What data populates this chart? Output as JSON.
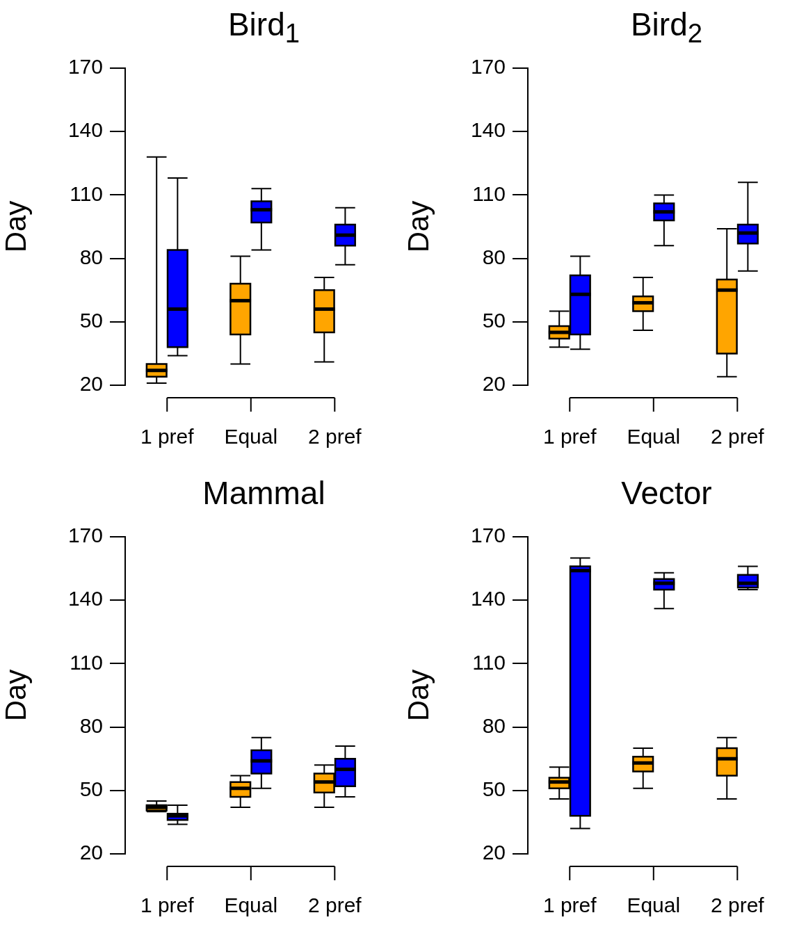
{
  "chart_data": [
    {
      "type": "box",
      "title": "Bird$_{1}$",
      "ylabel": "Day",
      "categories": [
        "1 pref",
        "Equal",
        "2 pref"
      ],
      "ylim": [
        20,
        170
      ],
      "yticks": [
        20,
        50,
        80,
        110,
        140,
        170
      ],
      "grid": false,
      "legend": false,
      "series": [
        {
          "color": "#ffa500",
          "boxes": [
            {
              "low": 21,
              "q1": 24,
              "median": 27,
              "q3": 30,
              "high": 128
            },
            {
              "low": 30,
              "q1": 44,
              "median": 60,
              "q3": 68,
              "high": 81
            },
            {
              "low": 31,
              "q1": 45,
              "median": 56,
              "q3": 65,
              "high": 71
            }
          ]
        },
        {
          "color": "#0000ff",
          "boxes": [
            {
              "low": 34,
              "q1": 38,
              "median": 56,
              "q3": 84,
              "high": 118
            },
            {
              "low": 84,
              "q1": 97,
              "median": 103,
              "q3": 107,
              "high": 113
            },
            {
              "low": 77,
              "q1": 86,
              "median": 91,
              "q3": 96,
              "high": 104
            }
          ]
        }
      ]
    },
    {
      "type": "box",
      "title": "Bird$_{2}$",
      "ylabel": "Day",
      "categories": [
        "1 pref",
        "Equal",
        "2 pref"
      ],
      "ylim": [
        20,
        170
      ],
      "yticks": [
        20,
        50,
        80,
        110,
        140,
        170
      ],
      "grid": false,
      "legend": false,
      "series": [
        {
          "color": "#ffa500",
          "boxes": [
            {
              "low": 38,
              "q1": 42,
              "median": 45,
              "q3": 48,
              "high": 55
            },
            {
              "low": 46,
              "q1": 55,
              "median": 59,
              "q3": 62,
              "high": 71
            },
            {
              "low": 24,
              "q1": 35,
              "median": 65,
              "q3": 70,
              "high": 94
            }
          ]
        },
        {
          "color": "#0000ff",
          "boxes": [
            {
              "low": 37,
              "q1": 44,
              "median": 63,
              "q3": 72,
              "high": 81
            },
            {
              "low": 86,
              "q1": 98,
              "median": 102,
              "q3": 106,
              "high": 110
            },
            {
              "low": 74,
              "q1": 87,
              "median": 92,
              "q3": 96,
              "high": 116
            }
          ]
        }
      ]
    },
    {
      "type": "box",
      "title": "Mammal",
      "ylabel": "Day",
      "categories": [
        "1 pref",
        "Equal",
        "2 pref"
      ],
      "ylim": [
        20,
        170
      ],
      "yticks": [
        20,
        50,
        80,
        110,
        140,
        170
      ],
      "grid": false,
      "legend": false,
      "series": [
        {
          "color": "#ffa500",
          "boxes": [
            {
              "low": 40,
              "q1": 40.5,
              "median": 42,
              "q3": 43,
              "high": 45
            },
            {
              "low": 42,
              "q1": 47,
              "median": 51,
              "q3": 54,
              "high": 57
            },
            {
              "low": 42,
              "q1": 49,
              "median": 54,
              "q3": 58,
              "high": 62
            }
          ]
        },
        {
          "color": "#0000ff",
          "boxes": [
            {
              "low": 34,
              "q1": 36,
              "median": 38,
              "q3": 39,
              "high": 43
            },
            {
              "low": 51,
              "q1": 58,
              "median": 64,
              "q3": 69,
              "high": 75
            },
            {
              "low": 47,
              "q1": 52,
              "median": 60,
              "q3": 65,
              "high": 71
            }
          ]
        }
      ]
    },
    {
      "type": "box",
      "title": "Vector",
      "ylabel": "Day",
      "categories": [
        "1 pref",
        "Equal",
        "2 pref"
      ],
      "ylim": [
        20,
        170
      ],
      "yticks": [
        20,
        50,
        80,
        110,
        140,
        170
      ],
      "grid": false,
      "legend": false,
      "series": [
        {
          "color": "#ffa500",
          "boxes": [
            {
              "low": 46,
              "q1": 51,
              "median": 54,
              "q3": 56,
              "high": 61
            },
            {
              "low": 51,
              "q1": 59,
              "median": 63,
              "q3": 66,
              "high": 70
            },
            {
              "low": 46,
              "q1": 57,
              "median": 65,
              "q3": 70,
              "high": 75
            }
          ]
        },
        {
          "color": "#0000ff",
          "boxes": [
            {
              "low": 32,
              "q1": 38,
              "median": 154,
              "q3": 156,
              "high": 160
            },
            {
              "low": 136,
              "q1": 145,
              "median": 148,
              "q3": 150,
              "high": 153
            },
            {
              "low": 145,
              "q1": 146,
              "median": 148,
              "q3": 152,
              "high": 156
            }
          ]
        }
      ]
    }
  ]
}
